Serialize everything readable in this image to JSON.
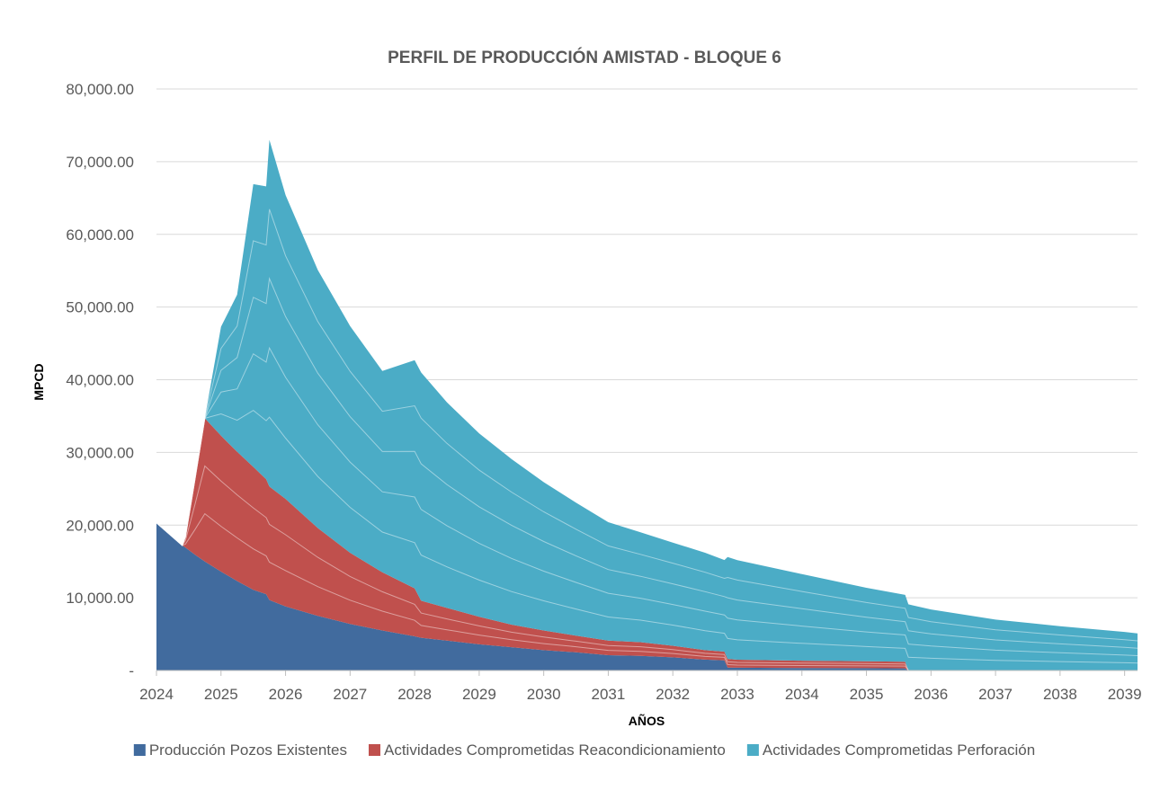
{
  "chart_data": {
    "type": "area",
    "stacked": true,
    "title": "PERFIL DE PRODUCCIÓN AMISTAD - BLOQUE 6",
    "xlabel": "AÑOS",
    "ylabel": "MPCD",
    "x_ticks": [
      "2024",
      "2025",
      "2026",
      "2027",
      "2028",
      "2029",
      "2030",
      "2031",
      "2032",
      "2033",
      "2034",
      "2035",
      "2036",
      "2037",
      "2038",
      "2039"
    ],
    "y_ticks": [
      "-",
      "10,000.00",
      "20,000.00",
      "30,000.00",
      "40,000.00",
      "50,000.00",
      "60,000.00",
      "70,000.00",
      "80,000.00"
    ],
    "xlim": [
      2024.0,
      2039.2
    ],
    "ylim": [
      0,
      80000
    ],
    "grid": true,
    "legend_position": "bottom",
    "x": [
      2024.0,
      2024.4,
      2024.45,
      2024.6,
      2024.75,
      2025.0,
      2025.25,
      2025.5,
      2025.7,
      2025.75,
      2026.0,
      2026.5,
      2027.0,
      2027.5,
      2028.0,
      2028.1,
      2028.5,
      2029.0,
      2029.5,
      2030.0,
      2030.5,
      2031.0,
      2031.5,
      2032.0,
      2032.5,
      2032.8,
      2032.85,
      2033.0,
      2034.0,
      2035.0,
      2035.6,
      2035.65,
      2036.0,
      2037.0,
      2038.0,
      2039.0,
      2039.2
    ],
    "series": [
      {
        "name": "Producción Pozos Existentes",
        "color": "#416b9e",
        "values": [
          20300,
          17200,
          16900,
          15900,
          15000,
          13600,
          12300,
          11100,
          10500,
          9700,
          8800,
          7500,
          6400,
          5500,
          4700,
          4500,
          4100,
          3600,
          3200,
          2800,
          2500,
          2100,
          2000,
          1800,
          1500,
          1400,
          400,
          380,
          350,
          320,
          300,
          0,
          0,
          0,
          0,
          0,
          0
        ]
      },
      {
        "name": "Actividades Comprometidas Reacondicionamiento",
        "color": "#c0504d",
        "values": [
          0,
          0,
          1500,
          10600,
          19700,
          18700,
          17800,
          16900,
          15800,
          15600,
          14800,
          12100,
          9800,
          8000,
          6600,
          5100,
          4500,
          3800,
          3100,
          2700,
          2300,
          2000,
          1900,
          1600,
          1300,
          1200,
          1200,
          1100,
          1000,
          950,
          900,
          0,
          0,
          0,
          0,
          0,
          0
        ]
      },
      {
        "name": "Actividades Comprometidas Perforación",
        "color": "#4bacc6",
        "values": [
          0,
          0,
          0,
          0,
          0,
          15000,
          21600,
          38900,
          40300,
          47700,
          41800,
          35500,
          31200,
          27700,
          31400,
          31400,
          28300,
          25200,
          22800,
          20400,
          18300,
          16300,
          15100,
          14200,
          13400,
          12600,
          14000,
          13700,
          11900,
          10100,
          9200,
          9100,
          8400,
          7000,
          6100,
          5300,
          5100
        ]
      }
    ],
    "legend": [
      {
        "label": "Producción Pozos Existentes",
        "color": "#416b9e"
      },
      {
        "label": "Actividades Comprometidas Reacondicionamiento",
        "color": "#c0504d"
      },
      {
        "label": "Actividades Comprometidas Perforación",
        "color": "#4bacc6"
      }
    ]
  }
}
